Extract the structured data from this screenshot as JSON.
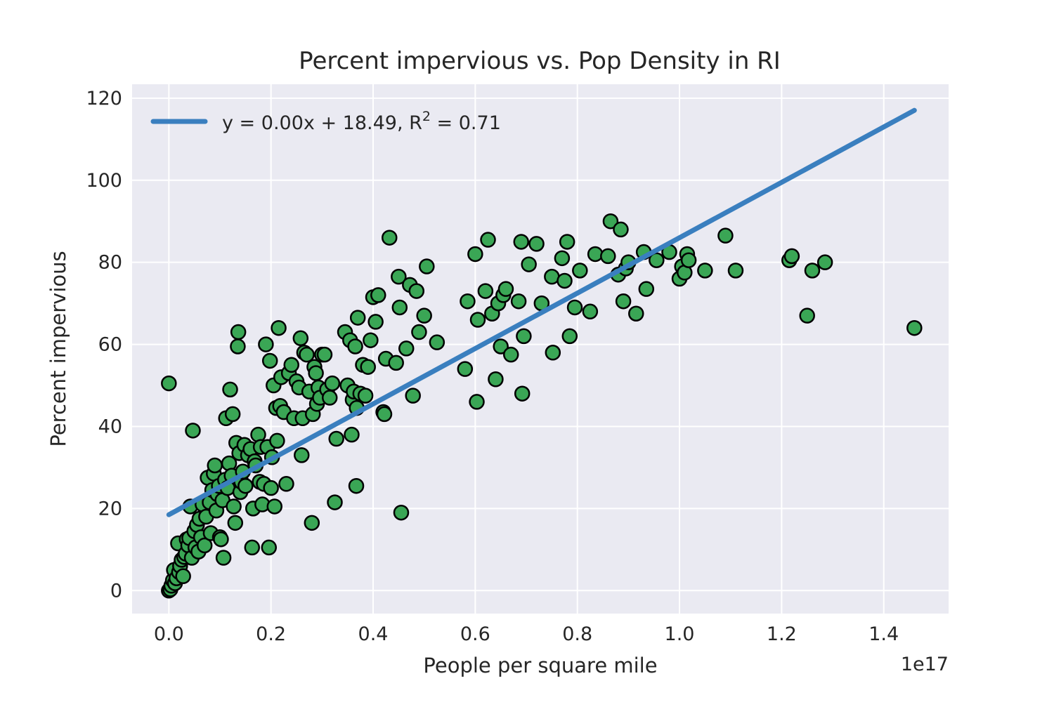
{
  "chart_data": {
    "type": "scatter",
    "title": "Percent impervious vs. Pop Density in RI",
    "xlabel": "People per square mile",
    "ylabel": "Percent impervious",
    "x_offset_label": "1e17",
    "xlim": [
      -0.072,
      1.527
    ],
    "ylim": [
      -5.6,
      123.4
    ],
    "x_ticks": [
      0.0,
      0.2,
      0.4,
      0.6,
      0.8,
      1.0,
      1.2,
      1.4
    ],
    "x_tick_labels": [
      "0.0",
      "0.2",
      "0.4",
      "0.6",
      "0.8",
      "1.0",
      "1.2",
      "1.4"
    ],
    "y_ticks": [
      0,
      20,
      40,
      60,
      80,
      100,
      120
    ],
    "y_tick_labels": [
      "0",
      "20",
      "40",
      "60",
      "80",
      "100",
      "120"
    ],
    "grid": true,
    "legend_position": "upper-left",
    "colors": {
      "background": "#eaeaf2",
      "grid": "#ffffff",
      "point_fill": "#3aa655",
      "point_edge": "#000000",
      "fit_line": "#3a7fbf"
    },
    "fit_line": {
      "label_main": "y = 0.00x + 18.49, R",
      "label_sup": "2",
      "label_tail": " = 0.71",
      "slope": 67.5,
      "intercept": 18.49,
      "x_range": [
        0.0,
        1.46
      ]
    },
    "series": [
      {
        "points": [
          [
            0.0,
            50.5
          ],
          [
            0.0,
            0.0
          ],
          [
            0.003,
            0.3
          ],
          [
            0.005,
            1.2
          ],
          [
            0.008,
            2.5
          ],
          [
            0.01,
            5.0
          ],
          [
            0.012,
            1.8
          ],
          [
            0.015,
            3.0
          ],
          [
            0.018,
            11.5
          ],
          [
            0.02,
            4.5
          ],
          [
            0.022,
            6.0
          ],
          [
            0.025,
            7.5
          ],
          [
            0.028,
            3.5
          ],
          [
            0.03,
            8.2
          ],
          [
            0.033,
            9.0
          ],
          [
            0.035,
            12.5
          ],
          [
            0.038,
            11.0
          ],
          [
            0.04,
            12.8
          ],
          [
            0.042,
            20.5
          ],
          [
            0.045,
            8.0
          ],
          [
            0.047,
            39.0
          ],
          [
            0.05,
            14.5
          ],
          [
            0.052,
            10.5
          ],
          [
            0.055,
            16.0
          ],
          [
            0.058,
            9.5
          ],
          [
            0.06,
            17.5
          ],
          [
            0.063,
            13.0
          ],
          [
            0.066,
            21.0
          ],
          [
            0.07,
            11.0
          ],
          [
            0.073,
            18.0
          ],
          [
            0.076,
            27.5
          ],
          [
            0.08,
            21.5
          ],
          [
            0.082,
            14.0
          ],
          [
            0.085,
            24.5
          ],
          [
            0.088,
            28.5
          ],
          [
            0.09,
            30.5
          ],
          [
            0.093,
            19.5
          ],
          [
            0.095,
            23.5
          ],
          [
            0.098,
            25.5
          ],
          [
            0.1,
            13.0
          ],
          [
            0.102,
            12.5
          ],
          [
            0.105,
            22.0
          ],
          [
            0.107,
            8.0
          ],
          [
            0.11,
            27.0
          ],
          [
            0.112,
            42.0
          ],
          [
            0.115,
            25.0
          ],
          [
            0.118,
            31.0
          ],
          [
            0.12,
            49.0
          ],
          [
            0.123,
            28.0
          ],
          [
            0.125,
            43.0
          ],
          [
            0.127,
            20.5
          ],
          [
            0.13,
            16.5
          ],
          [
            0.132,
            36.0
          ],
          [
            0.135,
            59.5
          ],
          [
            0.136,
            63.0
          ],
          [
            0.138,
            33.5
          ],
          [
            0.14,
            24.0
          ],
          [
            0.142,
            26.5
          ],
          [
            0.145,
            29.0
          ],
          [
            0.148,
            35.5
          ],
          [
            0.15,
            25.5
          ],
          [
            0.155,
            33.0
          ],
          [
            0.16,
            34.5
          ],
          [
            0.163,
            10.5
          ],
          [
            0.165,
            20.0
          ],
          [
            0.168,
            31.5
          ],
          [
            0.17,
            30.5
          ],
          [
            0.175,
            38.0
          ],
          [
            0.178,
            26.5
          ],
          [
            0.18,
            35.0
          ],
          [
            0.183,
            21.0
          ],
          [
            0.186,
            26.0
          ],
          [
            0.19,
            60.0
          ],
          [
            0.193,
            35.0
          ],
          [
            0.196,
            10.5
          ],
          [
            0.198,
            56.0
          ],
          [
            0.2,
            25.0
          ],
          [
            0.202,
            32.5
          ],
          [
            0.205,
            50.0
          ],
          [
            0.207,
            20.5
          ],
          [
            0.21,
            44.5
          ],
          [
            0.212,
            36.5
          ],
          [
            0.215,
            64.0
          ],
          [
            0.218,
            45.0
          ],
          [
            0.22,
            52.0
          ],
          [
            0.225,
            43.5
          ],
          [
            0.23,
            26.0
          ],
          [
            0.235,
            53.0
          ],
          [
            0.24,
            55.0
          ],
          [
            0.245,
            42.0
          ],
          [
            0.25,
            51.0
          ],
          [
            0.255,
            49.5
          ],
          [
            0.258,
            61.5
          ],
          [
            0.26,
            33.0
          ],
          [
            0.262,
            42.0
          ],
          [
            0.265,
            58.0
          ],
          [
            0.27,
            57.5
          ],
          [
            0.275,
            48.5
          ],
          [
            0.28,
            16.5
          ],
          [
            0.282,
            43.0
          ],
          [
            0.285,
            54.5
          ],
          [
            0.288,
            53.0
          ],
          [
            0.29,
            45.5
          ],
          [
            0.293,
            49.5
          ],
          [
            0.296,
            47.0
          ],
          [
            0.3,
            57.5
          ],
          [
            0.305,
            57.5
          ],
          [
            0.31,
            49.0
          ],
          [
            0.315,
            47.0
          ],
          [
            0.32,
            50.5
          ],
          [
            0.325,
            21.5
          ],
          [
            0.328,
            37.0
          ],
          [
            0.345,
            63.0
          ],
          [
            0.35,
            50.0
          ],
          [
            0.355,
            61.0
          ],
          [
            0.358,
            38.0
          ],
          [
            0.36,
            46.5
          ],
          [
            0.362,
            48.5
          ],
          [
            0.365,
            59.5
          ],
          [
            0.367,
            25.5
          ],
          [
            0.368,
            44.5
          ],
          [
            0.37,
            66.5
          ],
          [
            0.375,
            48.0
          ],
          [
            0.38,
            55.0
          ],
          [
            0.385,
            47.5
          ],
          [
            0.39,
            54.5
          ],
          [
            0.395,
            61.0
          ],
          [
            0.4,
            71.5
          ],
          [
            0.405,
            65.5
          ],
          [
            0.41,
            72.0
          ],
          [
            0.42,
            43.5
          ],
          [
            0.422,
            43.0
          ],
          [
            0.425,
            56.5
          ],
          [
            0.432,
            86.0
          ],
          [
            0.445,
            55.5
          ],
          [
            0.45,
            76.5
          ],
          [
            0.452,
            69.0
          ],
          [
            0.455,
            19.0
          ],
          [
            0.465,
            59.0
          ],
          [
            0.472,
            74.5
          ],
          [
            0.478,
            47.5
          ],
          [
            0.485,
            73.0
          ],
          [
            0.49,
            63.0
          ],
          [
            0.5,
            67.0
          ],
          [
            0.505,
            79.0
          ],
          [
            0.525,
            60.5
          ],
          [
            0.58,
            54.0
          ],
          [
            0.585,
            70.5
          ],
          [
            0.6,
            82.0
          ],
          [
            0.603,
            46.0
          ],
          [
            0.605,
            66.0
          ],
          [
            0.62,
            73.0
          ],
          [
            0.625,
            85.5
          ],
          [
            0.633,
            67.5
          ],
          [
            0.64,
            51.5
          ],
          [
            0.645,
            70.0
          ],
          [
            0.65,
            59.5
          ],
          [
            0.655,
            72.0
          ],
          [
            0.66,
            73.5
          ],
          [
            0.67,
            57.5
          ],
          [
            0.685,
            70.5
          ],
          [
            0.69,
            85.0
          ],
          [
            0.692,
            48.0
          ],
          [
            0.695,
            62.0
          ],
          [
            0.705,
            79.5
          ],
          [
            0.72,
            84.5
          ],
          [
            0.73,
            70.0
          ],
          [
            0.75,
            76.5
          ],
          [
            0.752,
            58.0
          ],
          [
            0.77,
            81.0
          ],
          [
            0.775,
            75.5
          ],
          [
            0.78,
            85.0
          ],
          [
            0.785,
            62.0
          ],
          [
            0.795,
            69.0
          ],
          [
            0.805,
            78.0
          ],
          [
            0.825,
            68.0
          ],
          [
            0.835,
            82.0
          ],
          [
            0.86,
            81.5
          ],
          [
            0.865,
            90.0
          ],
          [
            0.88,
            77.0
          ],
          [
            0.885,
            88.0
          ],
          [
            0.89,
            70.5
          ],
          [
            0.895,
            78.5
          ],
          [
            0.9,
            80.0
          ],
          [
            0.915,
            67.5
          ],
          [
            0.93,
            82.5
          ],
          [
            0.935,
            73.5
          ],
          [
            0.955,
            80.5
          ],
          [
            0.98,
            82.5
          ],
          [
            1.0,
            76.0
          ],
          [
            1.005,
            79.0
          ],
          [
            1.01,
            77.5
          ],
          [
            1.015,
            82.0
          ],
          [
            1.018,
            80.5
          ],
          [
            1.05,
            78.0
          ],
          [
            1.09,
            86.5
          ],
          [
            1.11,
            78.0
          ],
          [
            1.215,
            80.5
          ],
          [
            1.22,
            81.5
          ],
          [
            1.25,
            67.0
          ],
          [
            1.26,
            78.0
          ],
          [
            1.285,
            80.0
          ],
          [
            1.46,
            64.0
          ]
        ]
      }
    ]
  }
}
